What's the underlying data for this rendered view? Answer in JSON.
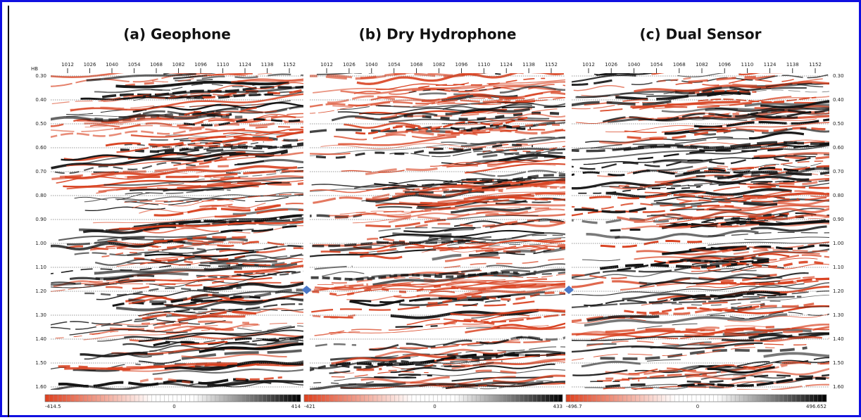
{
  "figure": {
    "axis_unit": "HB",
    "trace_ticks": [
      "1012",
      "1026",
      "1040",
      "1054",
      "1068",
      "1082",
      "1096",
      "1110",
      "1124",
      "1138",
      "1152"
    ],
    "time_ticks": [
      "0.30",
      "0.40",
      "0.50",
      "0.60",
      "0.70",
      "0.80",
      "0.90",
      "1.00",
      "1.10",
      "1.20",
      "1.30",
      "1.40",
      "1.50",
      "1.60"
    ],
    "panels": [
      {
        "title": "(a) Geophone",
        "colorbar": [
          "-414.5",
          "0",
          "414"
        ]
      },
      {
        "title": "(b) Dry Hydrophone",
        "colorbar": [
          "-421",
          "0",
          "433"
        ]
      },
      {
        "title": "(c) Dual Sensor",
        "colorbar": [
          "-496.7",
          "0",
          "496.652"
        ]
      }
    ]
  }
}
